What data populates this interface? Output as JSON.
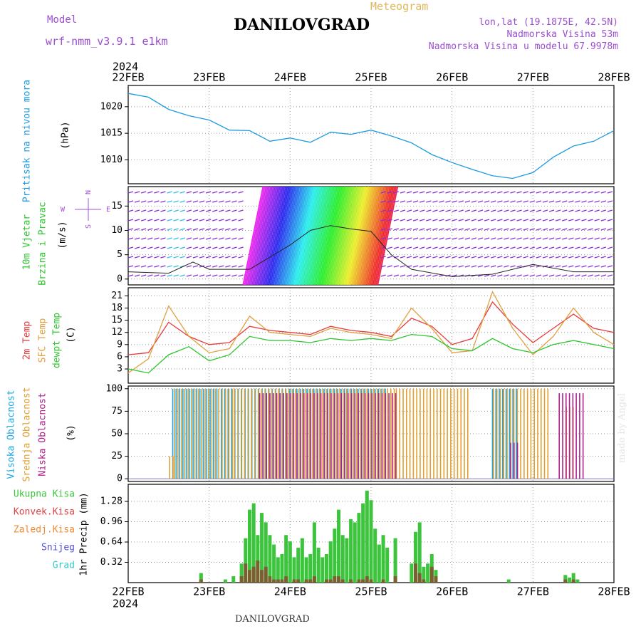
{
  "header": {
    "model_label": "Model",
    "model_name": "wrf-nmm_v3.9.1  e1km",
    "station": "DANILOVGRAD",
    "product": "Meteogram",
    "lonlat": "lon,lat (19.1875E, 42.5N)",
    "elevation": "Nadmorska Visina 53m",
    "model_elevation": "Nadmorska Visina u modelu 67.9978m"
  },
  "footer": {
    "station": "DANILOVGRAD",
    "credit": "made by Angel"
  },
  "colors": {
    "pressure": "#1e9be0",
    "temp2m": "#e8393b",
    "sfc": "#e0a040",
    "dewpt": "#2ec52e",
    "high_cloud": "#1aa6e8",
    "mid_cloud": "#e0a030",
    "low_cloud": "#b0208a",
    "total_precip": "#3dc43d",
    "conv_precip": "#e04040",
    "frz_precip": "#f08a30",
    "snow": "#5050e0",
    "hail": "#30c8c8",
    "wind_label": "#a050d8"
  },
  "chart_data": [
    {
      "type": "line",
      "id": "pressure",
      "ylabel": "Pritisak na nivou mora",
      "unit": "(hPa)",
      "ylim": [
        1005.5,
        1024
      ],
      "yticks": [
        1010,
        1015,
        1020
      ],
      "x_days": [
        0,
        0.25,
        0.5,
        0.75,
        1.0,
        1.25,
        1.5,
        1.75,
        2.0,
        2.25,
        2.5,
        2.75,
        3.0,
        3.25,
        3.5,
        3.75,
        4.0,
        4.25,
        4.5,
        4.75,
        5.0,
        5.25,
        5.5,
        5.75,
        6.0
      ],
      "values": [
        1022.5,
        1021.8,
        1019.5,
        1018.3,
        1017.5,
        1015.6,
        1015.5,
        1013.5,
        1014.1,
        1013.3,
        1015.2,
        1014.8,
        1015.6,
        1014.5,
        1013.2,
        1011.0,
        1009.5,
        1008.2,
        1007.0,
        1006.5,
        1007.6,
        1010.5,
        1012.6,
        1013.5,
        1015.5
      ]
    },
    {
      "type": "line",
      "id": "wind",
      "ylabel": "10m Vjetar",
      "ylabel2": "Brzina i Pravac",
      "unit": "(m/s)",
      "ylim": [
        -1.2,
        19
      ],
      "yticks": [
        0,
        5,
        10,
        15
      ],
      "compass": [
        "N",
        "W",
        "E",
        "S"
      ],
      "x_days": [
        0,
        0.5,
        0.8,
        1.0,
        1.5,
        2.0,
        2.25,
        2.5,
        2.75,
        3.0,
        3.25,
        3.5,
        4.0,
        4.5,
        5.0,
        5.5,
        6.0
      ],
      "speed": [
        1.5,
        1.2,
        3.5,
        2.0,
        2.0,
        7.0,
        10.0,
        11.0,
        10.3,
        9.8,
        5.0,
        2.0,
        0.5,
        1.0,
        3.0,
        1.5,
        1.5
      ]
    },
    {
      "type": "line",
      "id": "temperature",
      "ylabels": [
        "2m Temp",
        "SFC Temp",
        "dewpt Temp"
      ],
      "unit": "(C)",
      "ylim": [
        -0.5,
        23
      ],
      "yticks": [
        3,
        6,
        9,
        12,
        15,
        18,
        21
      ],
      "x_days": [
        0,
        0.25,
        0.5,
        0.75,
        1.0,
        1.25,
        1.5,
        1.75,
        2.0,
        2.25,
        2.5,
        2.75,
        3.0,
        3.25,
        3.5,
        3.75,
        4.0,
        4.25,
        4.5,
        4.75,
        5.0,
        5.25,
        5.5,
        5.75,
        6.0
      ],
      "series": [
        {
          "name": "2m Temp",
          "values": [
            6.5,
            7.0,
            14.5,
            11.0,
            9.0,
            9.5,
            13.5,
            12.5,
            12.0,
            11.5,
            13.5,
            12.5,
            12.0,
            11.0,
            15.5,
            13.5,
            9.0,
            10.5,
            19.5,
            14.0,
            9.5,
            13.0,
            16.5,
            13.0,
            12.0
          ]
        },
        {
          "name": "SFC Temp",
          "values": [
            2.0,
            5.5,
            18.5,
            11.0,
            7.0,
            8.0,
            16.0,
            12.0,
            11.5,
            11.0,
            13.0,
            12.0,
            11.5,
            10.5,
            18.0,
            13.0,
            7.0,
            7.5,
            22.0,
            13.0,
            6.5,
            11.0,
            18.0,
            12.0,
            9.0
          ]
        },
        {
          "name": "dewpt Temp",
          "values": [
            3.0,
            2.0,
            6.5,
            8.5,
            5.0,
            6.5,
            11.0,
            10.0,
            10.0,
            9.5,
            10.5,
            10.0,
            10.5,
            10.0,
            11.5,
            11.0,
            8.0,
            7.5,
            10.5,
            8.0,
            7.0,
            9.0,
            10.0,
            9.0,
            8.0
          ]
        }
      ]
    },
    {
      "type": "bar",
      "id": "clouds",
      "ylabels": [
        "Visoka Oblacnost",
        "Srednja Oblacnost",
        "Niska Oblacnost"
      ],
      "unit": "(%)",
      "ylim": [
        -3,
        103
      ],
      "yticks": [
        0,
        25,
        50,
        75,
        100
      ],
      "series": [
        {
          "name": "Visoka Oblacnost",
          "ranges": [
            [
              0.55,
              1.1,
              100
            ],
            [
              1.15,
              2.0,
              100
            ],
            [
              2.0,
              3.2,
              100
            ],
            [
              4.5,
              4.8,
              100
            ]
          ]
        },
        {
          "name": "Srednja Oblacnost",
          "ranges": [
            [
              0.5,
              0.56,
              25
            ],
            [
              0.56,
              1.3,
              100
            ],
            [
              1.3,
              3.3,
              100
            ],
            [
              3.3,
              4.2,
              100
            ],
            [
              4.5,
              5.2,
              100
            ],
            [
              5.4,
              5.5,
              80
            ]
          ]
        },
        {
          "name": "Niska Oblacnost",
          "ranges": [
            [
              1.6,
              3.3,
              95
            ],
            [
              4.7,
              4.8,
              40
            ],
            [
              5.3,
              5.6,
              95
            ]
          ]
        }
      ]
    },
    {
      "type": "bar",
      "id": "precip",
      "ylabels": [
        "Ukupna Kisa",
        "Konvek.Kisa",
        "Zaledj.Kisa",
        "Snijeg",
        "Grad"
      ],
      "unit": "1hr Precip (mm)",
      "ylim": [
        0,
        1.55
      ],
      "yticks": [
        0.32,
        0.64,
        0.96,
        1.28
      ],
      "x_days": [
        0.9,
        1.2,
        1.3,
        1.4,
        1.45,
        1.5,
        1.55,
        1.6,
        1.65,
        1.7,
        1.75,
        1.8,
        1.85,
        1.9,
        1.95,
        2.0,
        2.05,
        2.1,
        2.15,
        2.2,
        2.25,
        2.3,
        2.35,
        2.4,
        2.45,
        2.5,
        2.55,
        2.6,
        2.65,
        2.7,
        2.75,
        2.8,
        2.85,
        2.9,
        2.95,
        3.0,
        3.05,
        3.1,
        3.15,
        3.2,
        3.3,
        3.5,
        3.55,
        3.6,
        3.65,
        3.7,
        3.75,
        3.8,
        4.7,
        5.4,
        5.45,
        5.5,
        5.55
      ],
      "series": [
        {
          "name": "Ukupna Kisa",
          "values": [
            0.15,
            0.05,
            0.1,
            0.3,
            0.7,
            1.15,
            1.25,
            0.75,
            1.1,
            0.95,
            0.75,
            0.6,
            0.4,
            0.45,
            0.75,
            0.65,
            0.4,
            0.55,
            0.7,
            0.4,
            0.45,
            0.95,
            0.55,
            0.4,
            0.45,
            0.65,
            0.85,
            1.15,
            0.75,
            0.7,
            1.0,
            0.95,
            1.1,
            1.25,
            1.45,
            1.3,
            0.85,
            0.6,
            0.75,
            0.55,
            0.7,
            0.3,
            0.8,
            0.95,
            0.25,
            0.3,
            0.45,
            0.2,
            0.05,
            0.12,
            0.08,
            0.15,
            0.05
          ]
        },
        {
          "name": "Konvek.Kisa",
          "values": [
            0.05,
            0.0,
            0.0,
            0.1,
            0.3,
            0.2,
            0.25,
            0.35,
            0.2,
            0.25,
            0.1,
            0.05,
            0.05,
            0.05,
            0.1,
            0.0,
            0.05,
            0.05,
            0.0,
            0.05,
            0.05,
            0.1,
            0.0,
            0.0,
            0.05,
            0.05,
            0.1,
            0.1,
            0.05,
            0.0,
            0.05,
            0.0,
            0.05,
            0.05,
            0.1,
            0.05,
            0.0,
            0.0,
            0.05,
            0.0,
            0.1,
            0.0,
            0.3,
            0.15,
            0.05,
            0.0,
            0.25,
            0.1,
            0.0,
            0.05,
            0.0,
            0.05,
            0.0
          ]
        }
      ]
    }
  ],
  "x_axis": {
    "year": "2024",
    "days": [
      "22FEB",
      "23FEB",
      "24FEB",
      "25FEB",
      "26FEB",
      "27FEB",
      "28FEB"
    ]
  }
}
